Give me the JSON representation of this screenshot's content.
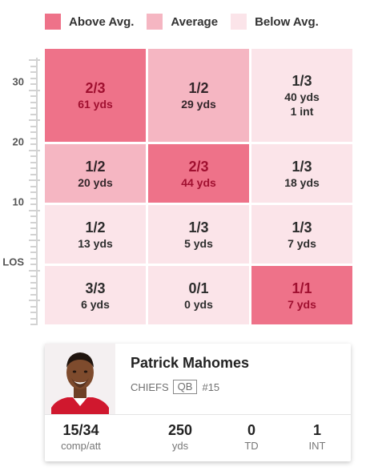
{
  "colors": {
    "above_avg": "#ee7289",
    "average": "#f5b6c2",
    "below_avg": "#fbe4e9"
  },
  "legend": [
    {
      "label": "Above Avg.",
      "level": "above"
    },
    {
      "label": "Average",
      "level": "average"
    },
    {
      "label": "Below Avg.",
      "level": "below"
    }
  ],
  "axis": {
    "labels": [
      "30",
      "20",
      "10",
      "LOS"
    ]
  },
  "grid": {
    "rows": [
      [
        {
          "level": "above",
          "main": "2/3",
          "yds": "61 yds"
        },
        {
          "level": "average",
          "main": "1/2",
          "yds": "29 yds"
        },
        {
          "level": "below",
          "main": "1/3",
          "yds": "40 yds",
          "extra": "1 int"
        }
      ],
      [
        {
          "level": "average",
          "main": "1/2",
          "yds": "20 yds"
        },
        {
          "level": "above",
          "main": "2/3",
          "yds": "44 yds"
        },
        {
          "level": "below",
          "main": "1/3",
          "yds": "18 yds"
        }
      ],
      [
        {
          "level": "below",
          "main": "1/2",
          "yds": "13 yds"
        },
        {
          "level": "below",
          "main": "1/3",
          "yds": "5 yds"
        },
        {
          "level": "below",
          "main": "1/3",
          "yds": "7 yds"
        }
      ],
      [
        {
          "level": "below",
          "main": "3/3",
          "yds": "6 yds"
        },
        {
          "level": "below",
          "main": "0/1",
          "yds": "0 yds"
        },
        {
          "level": "above",
          "main": "1/1",
          "yds": "7 yds"
        }
      ]
    ]
  },
  "player": {
    "name": "Patrick Mahomes",
    "team": "CHIEFS",
    "position": "QB",
    "number": "#15",
    "photo_icon": "player-headshot",
    "stats": [
      {
        "value": "15/34",
        "label": "comp/att"
      },
      {
        "value": "250",
        "label": "yds"
      },
      {
        "value": "0",
        "label": "TD"
      },
      {
        "value": "1",
        "label": "INT"
      }
    ]
  }
}
